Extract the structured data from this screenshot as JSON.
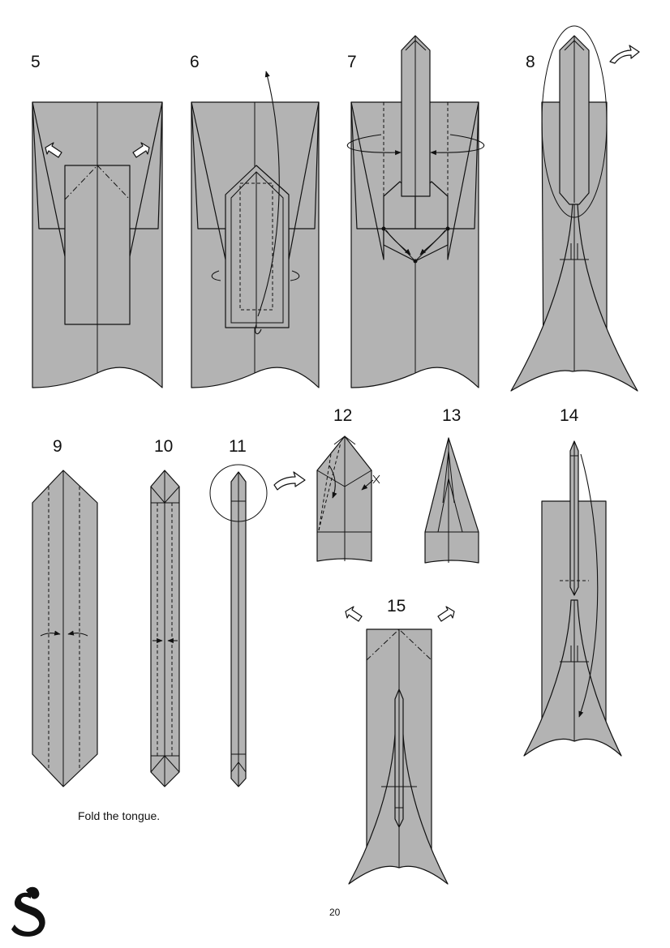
{
  "steps": [
    {
      "id": "5",
      "label": "5"
    },
    {
      "id": "6",
      "label": "6"
    },
    {
      "id": "7",
      "label": "7"
    },
    {
      "id": "8",
      "label": "8"
    },
    {
      "id": "9",
      "label": "9"
    },
    {
      "id": "10",
      "label": "10"
    },
    {
      "id": "11",
      "label": "11"
    },
    {
      "id": "12",
      "label": "12"
    },
    {
      "id": "13",
      "label": "13"
    },
    {
      "id": "14",
      "label": "14"
    },
    {
      "id": "15",
      "label": "15"
    }
  ],
  "caption": "Fold the tongue.",
  "page_number": "20",
  "colors": {
    "paper": "#b3b3b3",
    "line": "#111111",
    "background": "#ffffff"
  },
  "icons": {
    "logo": "cobra-snake-logo"
  }
}
